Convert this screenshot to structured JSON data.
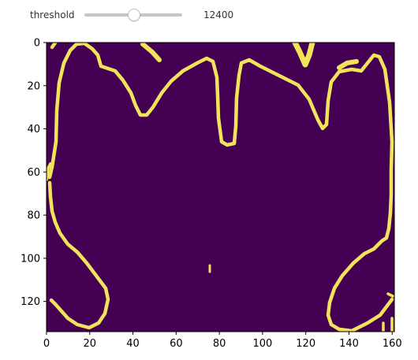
{
  "controls": {
    "threshold_label": "threshold",
    "threshold_value": "12400",
    "threshold_fraction": 0.5
  },
  "chart_data": {
    "type": "heatmap",
    "title": "",
    "xlabel": "",
    "ylabel": "",
    "colormap": {
      "low": "#440154",
      "high": "#f1e45a"
    },
    "colorbar": false,
    "xlim": [
      0,
      161
    ],
    "ylim": [
      134,
      0
    ],
    "x_ticks": [
      "0",
      "20",
      "40",
      "60",
      "80",
      "100",
      "120",
      "140",
      "160"
    ],
    "y_ticks": [
      "0",
      "20",
      "40",
      "60",
      "80",
      "100",
      "120"
    ]
  }
}
